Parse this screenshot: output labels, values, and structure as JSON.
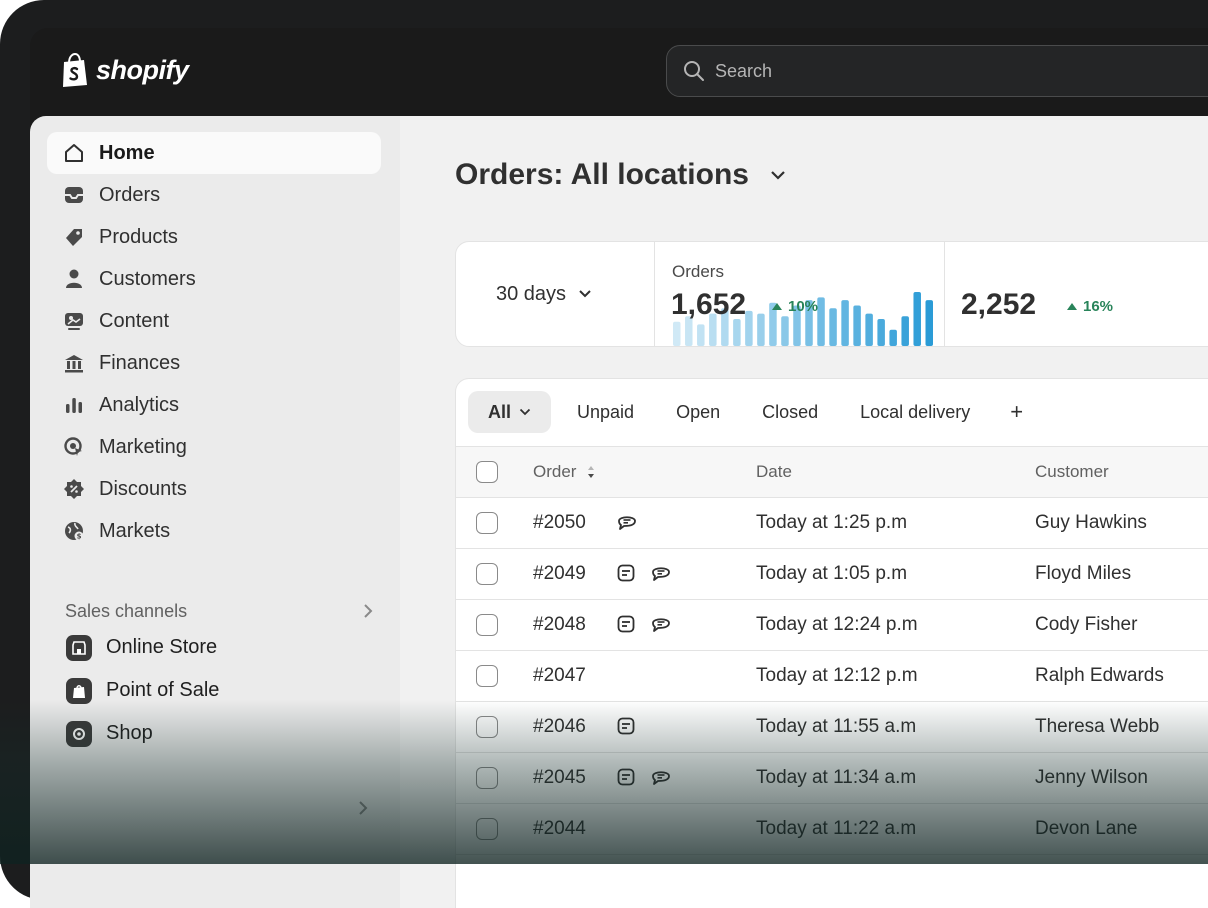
{
  "brand": {
    "name": "shopify",
    "icon": "shopify-bag-icon"
  },
  "search": {
    "placeholder": "Search",
    "icon": "search-icon"
  },
  "sidebar": {
    "items": [
      {
        "label": "Home",
        "icon": "home-icon",
        "active": true
      },
      {
        "label": "Orders",
        "icon": "inbox-icon"
      },
      {
        "label": "Products",
        "icon": "tag-icon"
      },
      {
        "label": "Customers",
        "icon": "person-icon"
      },
      {
        "label": "Content",
        "icon": "image-icon"
      },
      {
        "label": "Finances",
        "icon": "bank-icon"
      },
      {
        "label": "Analytics",
        "icon": "bar-chart-icon"
      },
      {
        "label": "Marketing",
        "icon": "target-icon"
      },
      {
        "label": "Discounts",
        "icon": "discount-badge-icon"
      },
      {
        "label": "Markets",
        "icon": "globe-icon"
      }
    ],
    "sales_channels_label": "Sales channels",
    "channels": [
      {
        "label": "Online Store",
        "icon": "store-icon"
      },
      {
        "label": "Point of Sale",
        "icon": "pos-bag-icon"
      },
      {
        "label": "Shop",
        "icon": "shop-app-icon"
      }
    ]
  },
  "main": {
    "title": "Orders: All locations",
    "period": "30 days",
    "metrics": [
      {
        "label": "Orders",
        "value": "1,652",
        "trend": "10%"
      },
      {
        "label": "",
        "value": "2,252",
        "trend": "16%"
      }
    ],
    "sparkline": [
      0.45,
      0.55,
      0.4,
      0.6,
      0.7,
      0.5,
      0.65,
      0.6,
      0.8,
      0.55,
      0.75,
      0.85,
      0.9,
      0.7,
      0.85,
      0.75,
      0.6,
      0.5,
      0.3,
      0.55,
      1.0,
      0.85
    ],
    "tabs": [
      "All",
      "Unpaid",
      "Open",
      "Closed",
      "Local delivery",
      "+"
    ],
    "columns": {
      "order": "Order",
      "date": "Date",
      "customer": "Customer"
    },
    "orders": [
      {
        "id": "#2050",
        "date": "Today at 1:25 p.m",
        "customer": "Guy Hawkins",
        "note": false,
        "comment": true
      },
      {
        "id": "#2049",
        "date": "Today at 1:05 p.m",
        "customer": "Floyd Miles",
        "note": true,
        "comment": true
      },
      {
        "id": "#2048",
        "date": "Today at 12:24 p.m",
        "customer": "Cody Fisher",
        "note": true,
        "comment": true
      },
      {
        "id": "#2047",
        "date": "Today at 12:12 p.m",
        "customer": "Ralph Edwards",
        "note": false,
        "comment": false
      },
      {
        "id": "#2046",
        "date": "Today at 11:55 a.m",
        "customer": "Theresa Webb",
        "note": true,
        "comment": false
      },
      {
        "id": "#2045",
        "date": "Today at 11:34 a.m",
        "customer": "Jenny Wilson",
        "note": true,
        "comment": true
      },
      {
        "id": "#2044",
        "date": "Today at 11:22 a.m",
        "customer": "Devon Lane",
        "note": false,
        "comment": false
      }
    ]
  },
  "colors": {
    "topbar": "#1a1a1a",
    "sidebar": "#ebebeb",
    "trend_green": "#29845a",
    "bar_blue": "#2a9bd6"
  }
}
